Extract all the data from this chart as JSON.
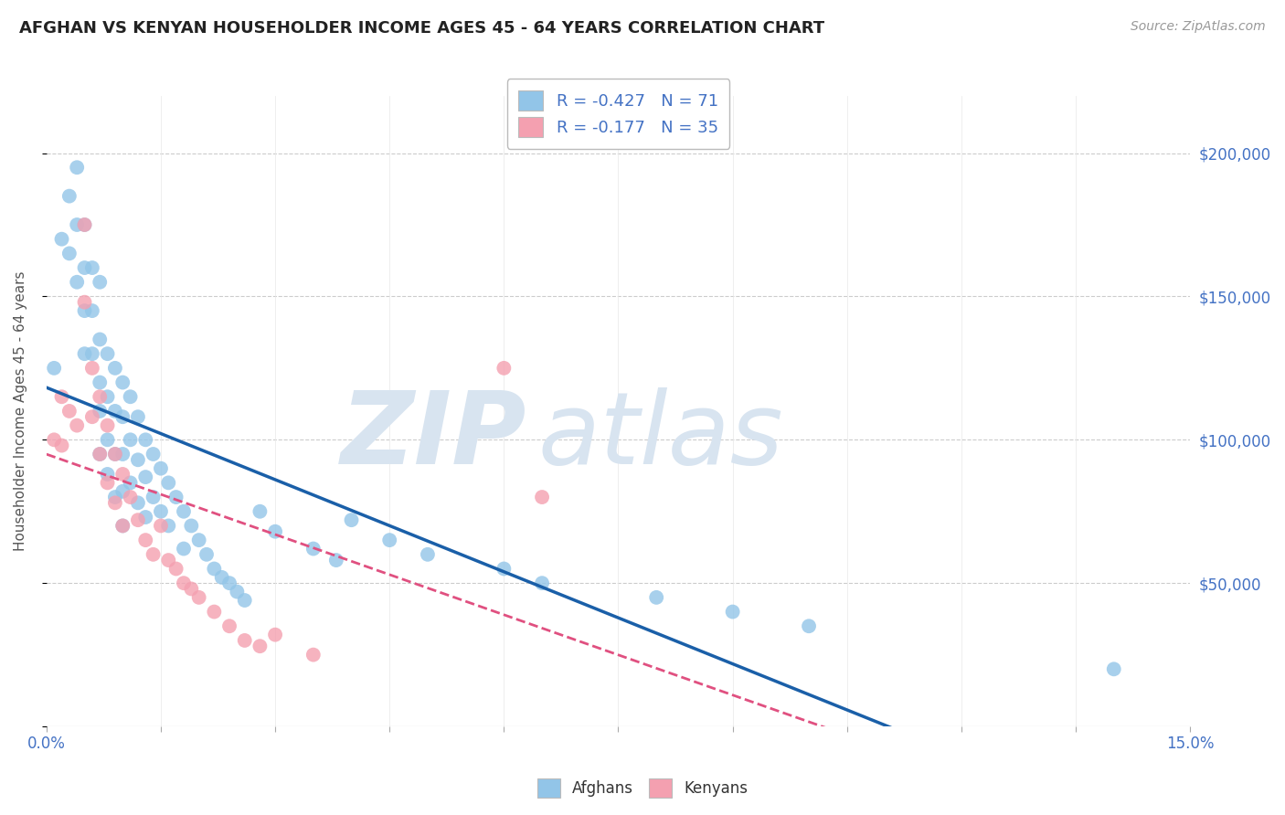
{
  "title": "AFGHAN VS KENYAN HOUSEHOLDER INCOME AGES 45 - 64 YEARS CORRELATION CHART",
  "source": "Source: ZipAtlas.com",
  "ylabel": "Householder Income Ages 45 - 64 years",
  "xlim": [
    0.0,
    0.15
  ],
  "ylim": [
    0,
    220000
  ],
  "yticks": [
    0,
    50000,
    100000,
    150000,
    200000
  ],
  "xticks": [
    0.0,
    0.015,
    0.03,
    0.045,
    0.06,
    0.075,
    0.09,
    0.105,
    0.12,
    0.135,
    0.15
  ],
  "afghan_R": -0.427,
  "afghan_N": 71,
  "kenyan_R": -0.177,
  "kenyan_N": 35,
  "afghan_color": "#92c5e8",
  "kenyan_color": "#f4a0b0",
  "afghan_line_color": "#1a5fa8",
  "kenyan_line_color": "#e05080",
  "background_color": "#ffffff",
  "grid_color": "#cccccc",
  "afghan_x": [
    0.001,
    0.002,
    0.003,
    0.003,
    0.004,
    0.004,
    0.004,
    0.005,
    0.005,
    0.005,
    0.005,
    0.006,
    0.006,
    0.006,
    0.007,
    0.007,
    0.007,
    0.007,
    0.007,
    0.008,
    0.008,
    0.008,
    0.008,
    0.009,
    0.009,
    0.009,
    0.009,
    0.01,
    0.01,
    0.01,
    0.01,
    0.01,
    0.011,
    0.011,
    0.011,
    0.012,
    0.012,
    0.012,
    0.013,
    0.013,
    0.013,
    0.014,
    0.014,
    0.015,
    0.015,
    0.016,
    0.016,
    0.017,
    0.018,
    0.018,
    0.019,
    0.02,
    0.021,
    0.022,
    0.023,
    0.024,
    0.025,
    0.026,
    0.028,
    0.03,
    0.035,
    0.038,
    0.04,
    0.045,
    0.05,
    0.06,
    0.065,
    0.08,
    0.09,
    0.1,
    0.14
  ],
  "afghan_y": [
    125000,
    170000,
    185000,
    165000,
    195000,
    175000,
    155000,
    175000,
    160000,
    145000,
    130000,
    160000,
    145000,
    130000,
    155000,
    135000,
    120000,
    110000,
    95000,
    130000,
    115000,
    100000,
    88000,
    125000,
    110000,
    95000,
    80000,
    120000,
    108000,
    95000,
    82000,
    70000,
    115000,
    100000,
    85000,
    108000,
    93000,
    78000,
    100000,
    87000,
    73000,
    95000,
    80000,
    90000,
    75000,
    85000,
    70000,
    80000,
    75000,
    62000,
    70000,
    65000,
    60000,
    55000,
    52000,
    50000,
    47000,
    44000,
    75000,
    68000,
    62000,
    58000,
    72000,
    65000,
    60000,
    55000,
    50000,
    45000,
    40000,
    35000,
    20000
  ],
  "kenyan_x": [
    0.001,
    0.002,
    0.002,
    0.003,
    0.004,
    0.005,
    0.005,
    0.006,
    0.006,
    0.007,
    0.007,
    0.008,
    0.008,
    0.009,
    0.009,
    0.01,
    0.01,
    0.011,
    0.012,
    0.013,
    0.014,
    0.015,
    0.016,
    0.017,
    0.018,
    0.019,
    0.02,
    0.022,
    0.024,
    0.026,
    0.028,
    0.03,
    0.035,
    0.06,
    0.065
  ],
  "kenyan_y": [
    100000,
    115000,
    98000,
    110000,
    105000,
    175000,
    148000,
    125000,
    108000,
    115000,
    95000,
    105000,
    85000,
    95000,
    78000,
    88000,
    70000,
    80000,
    72000,
    65000,
    60000,
    70000,
    58000,
    55000,
    50000,
    48000,
    45000,
    40000,
    35000,
    30000,
    28000,
    32000,
    25000,
    125000,
    80000
  ]
}
